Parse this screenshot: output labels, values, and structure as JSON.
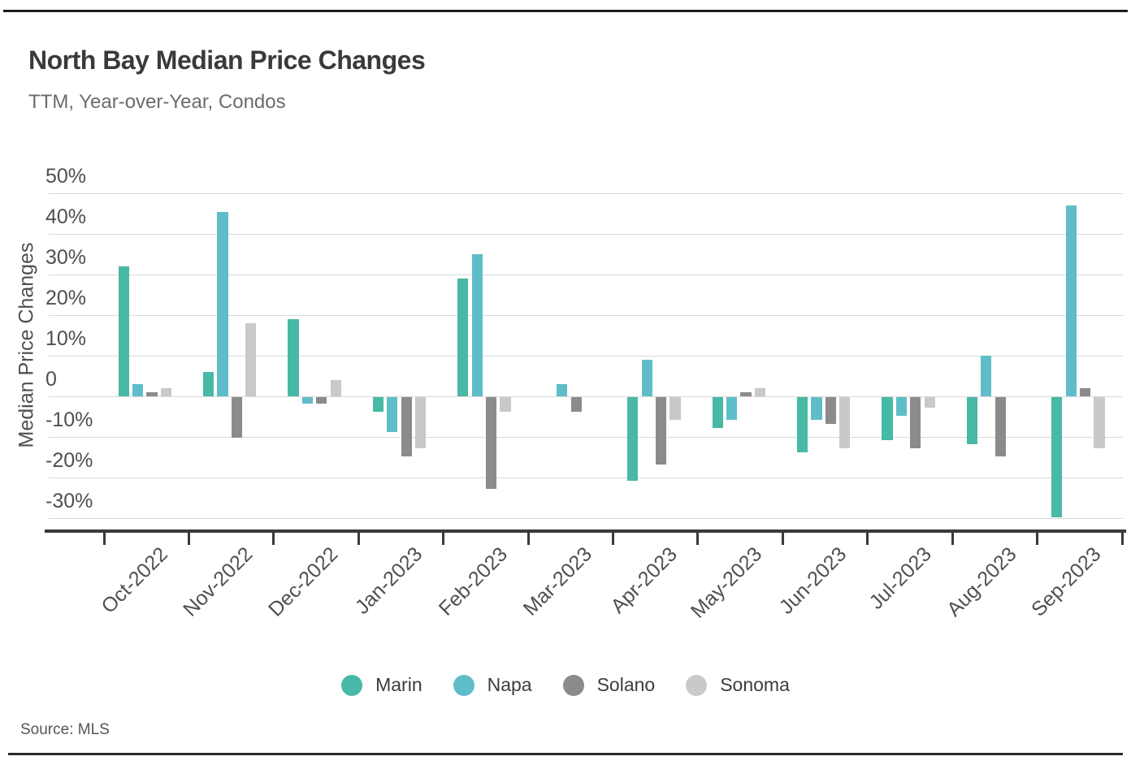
{
  "source": "Source: MLS",
  "chart_data": {
    "type": "bar",
    "title": "North Bay Median Price Changes",
    "subtitle": "TTM, Year-over-Year, Condos",
    "xlabel": "",
    "ylabel": "Median Price Changes",
    "categories": [
      "Oct-2022",
      "Nov-2022",
      "Dec-2022",
      "Jan-2023",
      "Feb-2023",
      "Mar-2023",
      "Apr-2023",
      "May-2023",
      "Jun-2023",
      "Jul-2023",
      "Aug-2023",
      "Sep-2023"
    ],
    "series": [
      {
        "name": "Marin",
        "color": "#47B9A5",
        "values": [
          32,
          6,
          19,
          -3.5,
          29,
          0,
          -20.5,
          -7.5,
          -13.5,
          -10.5,
          -11.5,
          -29.5
        ]
      },
      {
        "name": "Napa",
        "color": "#5FBDC9",
        "values": [
          3,
          45.5,
          -1.5,
          -8.5,
          35,
          3,
          9,
          -5.5,
          -5.5,
          -4.5,
          10,
          47
        ]
      },
      {
        "name": "Solano",
        "color": "#8B8B8B",
        "values": [
          1,
          -10,
          -1.5,
          -14.5,
          -22.5,
          -3.5,
          -16.5,
          1,
          -6.5,
          -12.5,
          -14.5,
          2
        ]
      },
      {
        "name": "Sonoma",
        "color": "#C9C9C9",
        "values": [
          2,
          18,
          4,
          -12.5,
          -3.5,
          0,
          -5.5,
          2,
          -12.5,
          -2.5,
          0,
          -12.5
        ]
      }
    ],
    "ytick_labels": [
      "50%",
      "40%",
      "30%",
      "20%",
      "10%",
      "0",
      "-10%",
      "-20%",
      "-30%"
    ],
    "ytick_values": [
      50,
      40,
      30,
      20,
      10,
      0,
      -10,
      -20,
      -30
    ],
    "ylim": [
      -35,
      55
    ],
    "unit": "percent",
    "grid": "horizontal",
    "legend_position": "bottom",
    "axis_color": "#3a3a3a",
    "gridline_color": "#d9d9d9"
  }
}
